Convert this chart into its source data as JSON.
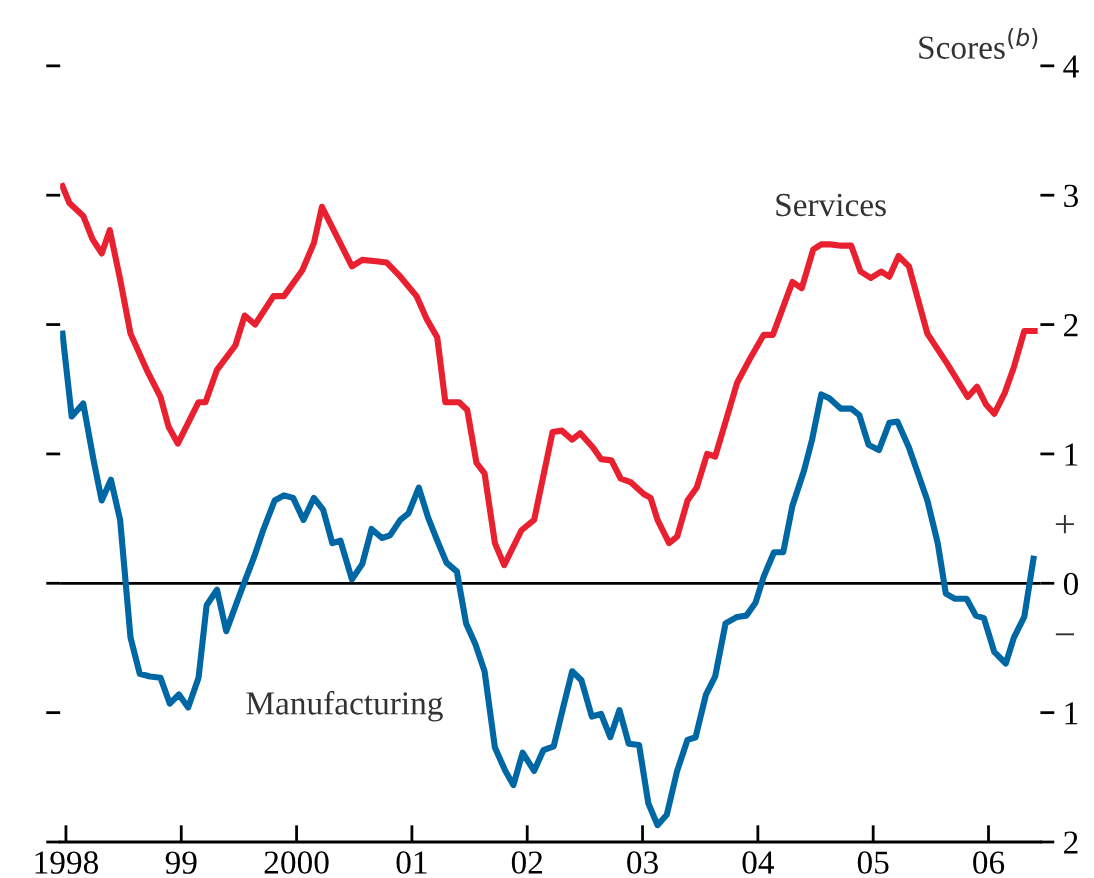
{
  "chart_data": {
    "type": "line",
    "ylabel": "Scores$^{(b)}$",
    "xlim": [
      1997.95,
      2006.45
    ],
    "xticks": [
      1998,
      {
        "value": 1999,
        "label": "99"
      },
      2000,
      {
        "value": 2001,
        "label": "01"
      },
      {
        "value": 2002,
        "label": "02"
      },
      {
        "value": 2003,
        "label": "03"
      },
      {
        "value": 2004,
        "label": "04"
      },
      {
        "value": 2005,
        "label": "05"
      },
      {
        "value": 2006,
        "label": "06"
      }
    ],
    "ylim": [
      -2,
      4
    ],
    "yticks": [
      {
        "value": -2,
        "label": "2"
      },
      {
        "value": -1,
        "label": "1"
      },
      0,
      1,
      2,
      3,
      4
    ],
    "grid": false,
    "legend": false,
    "marker": "none",
    "line_style": "solid",
    "ref_lines": [
      {
        "axis": "y",
        "value": 0,
        "label": null,
        "color": "#000000"
      }
    ],
    "annotations": [
      "+",
      "−"
    ],
    "series": [
      {
        "name": "Services",
        "color": "#e8202f",
        "x": [
          1997.97,
          1998.03,
          1998.15,
          1998.23,
          1998.31,
          1998.38,
          1998.47,
          1998.56,
          1998.7,
          1998.82,
          1998.89,
          1998.97,
          1999.15,
          1999.21,
          1999.31,
          1999.47,
          1999.55,
          1999.64,
          1999.8,
          1999.89,
          2000.05,
          2000.15,
          2000.22,
          2000.35,
          2000.48,
          2000.57,
          2000.69,
          2000.78,
          2000.9,
          2001.04,
          2001.13,
          2001.22,
          2001.29,
          2001.41,
          2001.48,
          2001.56,
          2001.63,
          2001.72,
          2001.8,
          2001.95,
          2002.06,
          2002.22,
          2002.3,
          2002.39,
          2002.46,
          2002.57,
          2002.64,
          2002.73,
          2002.81,
          2002.9,
          2003.01,
          2003.07,
          2003.13,
          2003.23,
          2003.3,
          2003.39,
          2003.47,
          2003.56,
          2003.63,
          2003.82,
          2003.94,
          2004.05,
          2004.13,
          2004.3,
          2004.38,
          2004.48,
          2004.55,
          2004.63,
          2004.72,
          2004.81,
          2004.89,
          2004.98,
          2005.07,
          2005.14,
          2005.22,
          2005.31,
          2005.47,
          2005.64,
          2005.82,
          2005.9,
          2005.98,
          2006.05,
          2006.14,
          2006.22,
          2006.31,
          2006.4
        ],
        "values": [
          3.07,
          2.94,
          2.84,
          2.66,
          2.55,
          2.73,
          2.35,
          1.93,
          1.65,
          1.44,
          1.21,
          1.08,
          1.4,
          1.4,
          1.65,
          1.84,
          2.07,
          2.0,
          2.22,
          2.22,
          2.42,
          2.63,
          2.91,
          2.68,
          2.45,
          2.5,
          2.49,
          2.48,
          2.37,
          2.22,
          2.04,
          1.9,
          1.4,
          1.4,
          1.34,
          0.93,
          0.85,
          0.31,
          0.14,
          0.41,
          0.49,
          1.17,
          1.18,
          1.11,
          1.16,
          1.05,
          0.96,
          0.95,
          0.81,
          0.78,
          0.69,
          0.66,
          0.49,
          0.31,
          0.36,
          0.64,
          0.74,
          1.0,
          0.98,
          1.55,
          1.75,
          1.92,
          1.92,
          2.33,
          2.28,
          2.58,
          2.62,
          2.62,
          2.61,
          2.61,
          2.41,
          2.36,
          2.41,
          2.37,
          2.53,
          2.45,
          1.93,
          1.7,
          1.44,
          1.52,
          1.38,
          1.31,
          1.47,
          1.67,
          1.95,
          1.95
        ]
      },
      {
        "name": "Manufacturing",
        "color": "#0067a5",
        "x": [
          1997.97,
          1998.05,
          1998.15,
          1998.24,
          1998.31,
          1998.39,
          1998.47,
          1998.56,
          1998.64,
          1998.73,
          1998.82,
          1998.9,
          1998.98,
          1999.06,
          1999.15,
          1999.22,
          1999.31,
          1999.39,
          1999.51,
          1999.63,
          1999.71,
          1999.81,
          1999.89,
          1999.97,
          2000.06,
          2000.15,
          2000.23,
          2000.31,
          2000.38,
          2000.48,
          2000.57,
          2000.65,
          2000.74,
          2000.81,
          2000.9,
          2000.97,
          2001.06,
          2001.14,
          2001.22,
          2001.3,
          2001.39,
          2001.47,
          2001.55,
          2001.63,
          2001.72,
          2001.81,
          2001.88,
          2001.96,
          2002.06,
          2002.14,
          2002.23,
          2002.32,
          2002.39,
          2002.47,
          2002.56,
          2002.64,
          2002.72,
          2002.8,
          2002.88,
          2002.97,
          2003.05,
          2003.13,
          2003.21,
          2003.3,
          2003.39,
          2003.46,
          2003.55,
          2003.63,
          2003.72,
          2003.82,
          2003.9,
          2003.98,
          2004.05,
          2004.14,
          2004.22,
          2004.3,
          2004.4,
          2004.47,
          2004.55,
          2004.62,
          2004.72,
          2004.81,
          2004.88,
          2004.96,
          2005.05,
          2005.14,
          2005.21,
          2005.31,
          2005.4,
          2005.47,
          2005.56,
          2005.63,
          2005.71,
          2005.81,
          2005.89,
          2005.96,
          2006.05,
          2006.15,
          2006.22,
          2006.31,
          2006.39
        ],
        "values": [
          1.93,
          1.29,
          1.39,
          0.95,
          0.64,
          0.8,
          0.49,
          -0.42,
          -0.7,
          -0.72,
          -0.73,
          -0.93,
          -0.86,
          -0.96,
          -0.73,
          -0.17,
          -0.05,
          -0.37,
          -0.08,
          0.2,
          0.41,
          0.64,
          0.68,
          0.66,
          0.49,
          0.66,
          0.57,
          0.31,
          0.33,
          0.03,
          0.15,
          0.42,
          0.35,
          0.37,
          0.49,
          0.54,
          0.74,
          0.51,
          0.33,
          0.16,
          0.09,
          -0.31,
          -0.47,
          -0.68,
          -1.27,
          -1.45,
          -1.56,
          -1.31,
          -1.45,
          -1.29,
          -1.26,
          -0.93,
          -0.68,
          -0.75,
          -1.03,
          -1.01,
          -1.19,
          -0.98,
          -1.24,
          -1.25,
          -1.7,
          -1.87,
          -1.79,
          -1.45,
          -1.21,
          -1.19,
          -0.86,
          -0.72,
          -0.31,
          -0.26,
          -0.25,
          -0.15,
          0.05,
          0.24,
          0.24,
          0.6,
          0.87,
          1.11,
          1.46,
          1.43,
          1.35,
          1.35,
          1.3,
          1.07,
          1.03,
          1.24,
          1.25,
          1.05,
          0.82,
          0.64,
          0.31,
          -0.08,
          -0.12,
          -0.12,
          -0.25,
          -0.27,
          -0.53,
          -0.62,
          -0.42,
          -0.26,
          0.19
        ]
      }
    ]
  }
}
